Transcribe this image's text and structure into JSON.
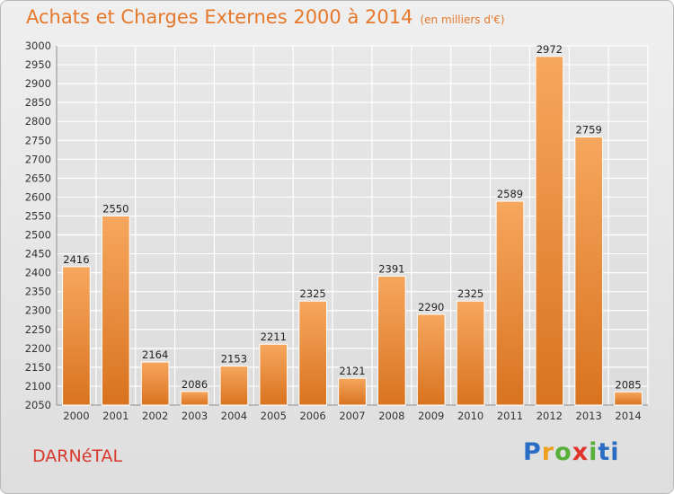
{
  "header": {
    "title": "Achats et Charges Externes 2000 à 2014",
    "subtitle": "(en milliers d'€)"
  },
  "footer": {
    "commune": "DARNéTAL",
    "logo_text": "Proxiti"
  },
  "colors": {
    "title": "#e6782b",
    "commune": "#d7392d",
    "bar_top": "#f6a75e",
    "bar_bottom": "#d9731f",
    "grid": "#ffffff",
    "background": "#e4e4e4"
  },
  "chart_data": {
    "type": "bar",
    "categories": [
      "2000",
      "2001",
      "2002",
      "2003",
      "2004",
      "2005",
      "2006",
      "2007",
      "2008",
      "2009",
      "2010",
      "2011",
      "2012",
      "2013",
      "2014"
    ],
    "values": [
      2416,
      2550,
      2164,
      2086,
      2153,
      2211,
      2325,
      2121,
      2391,
      2290,
      2325,
      2589,
      2972,
      2759,
      2085
    ],
    "ylim": [
      2050,
      3000
    ],
    "ytick_step": 50,
    "grid": true,
    "data_labels": true
  }
}
